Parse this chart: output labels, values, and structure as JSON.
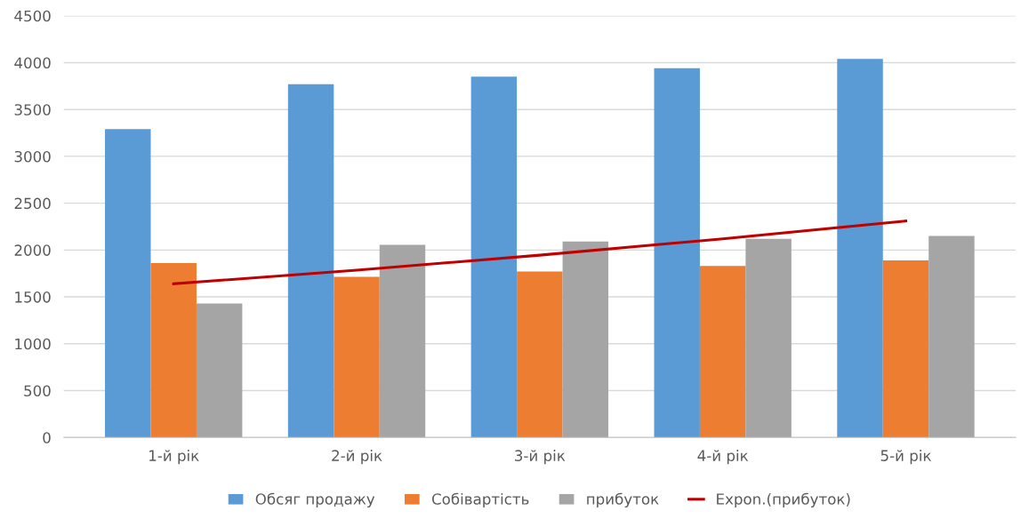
{
  "chart_data": {
    "type": "bar",
    "categories": [
      "1-й рік",
      "2-й рік",
      "3-й рік",
      "4-й рік",
      "5-й рік"
    ],
    "series": [
      {
        "name": "Обсяг продажу",
        "color": "#5b9bd5",
        "values": [
          3290,
          3770,
          3850,
          3940,
          4040
        ]
      },
      {
        "name": "Собівартість",
        "color": "#ed7d31",
        "values": [
          1860,
          1715,
          1770,
          1830,
          1890
        ]
      },
      {
        "name": "прибуток",
        "color": "#a5a5a5",
        "values": [
          1430,
          2055,
          2090,
          2120,
          2150
        ]
      },
      {
        "name": "Expon.(прибуток)",
        "color": "#c00000",
        "type": "line",
        "values": [
          1640,
          1785,
          1945,
          2120,
          2310
        ]
      }
    ],
    "ylim": [
      0,
      4500
    ],
    "yticks": [
      0,
      500,
      1000,
      1500,
      2000,
      2500,
      3000,
      3500,
      4000,
      4500
    ],
    "grid": "y",
    "legend": "bottom",
    "marker": "none",
    "line_style": "solid"
  }
}
